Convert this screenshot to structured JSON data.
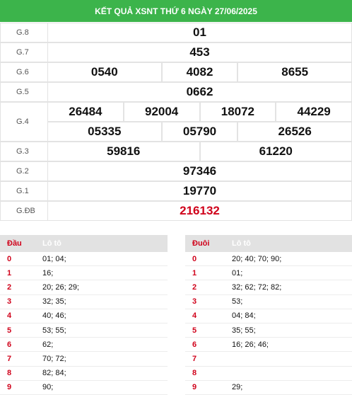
{
  "header": {
    "title": "KẾT QUẢ XSNT THỨ 6 NGÀY 27/06/2025"
  },
  "prizes": [
    {
      "label": "G.8",
      "numbers": [
        "01"
      ]
    },
    {
      "label": "G.7",
      "numbers": [
        "453"
      ]
    },
    {
      "label": "G.6",
      "numbers": [
        "0540",
        "4082",
        "8655"
      ]
    },
    {
      "label": "G.5",
      "numbers": [
        "0662"
      ]
    },
    {
      "label": "G.4",
      "numbers": [
        "26484",
        "92004",
        "18072",
        "44229",
        "05335",
        "05790",
        "26526"
      ]
    },
    {
      "label": "G.3",
      "numbers": [
        "59816",
        "61220"
      ]
    },
    {
      "label": "G.2",
      "numbers": [
        "97346"
      ]
    },
    {
      "label": "G.1",
      "numbers": [
        "19770"
      ]
    },
    {
      "label": "G.ĐB",
      "numbers": [
        "216132"
      ]
    }
  ],
  "tables": [
    {
      "headers": [
        "Đầu",
        "Lô tô"
      ],
      "rows": [
        [
          "0",
          "01; 04;"
        ],
        [
          "1",
          "16;"
        ],
        [
          "2",
          "20; 26; 29;"
        ],
        [
          "3",
          "32; 35;"
        ],
        [
          "4",
          "40; 46;"
        ],
        [
          "5",
          "53; 55;"
        ],
        [
          "6",
          "62;"
        ],
        [
          "7",
          "70; 72;"
        ],
        [
          "8",
          "82; 84;"
        ],
        [
          "9",
          "90;"
        ]
      ]
    },
    {
      "headers": [
        "Đuôi",
        "Lô tô"
      ],
      "rows": [
        [
          "0",
          "20; 40; 70; 90;"
        ],
        [
          "1",
          "01;"
        ],
        [
          "2",
          "32; 62; 72; 82;"
        ],
        [
          "3",
          "53;"
        ],
        [
          "4",
          "04; 84;"
        ],
        [
          "5",
          "35; 55;"
        ],
        [
          "6",
          "16; 26; 46;"
        ],
        [
          "7"
        ],
        [
          "8"
        ],
        [
          "9",
          "29;"
        ]
      ]
    }
  ]
}
